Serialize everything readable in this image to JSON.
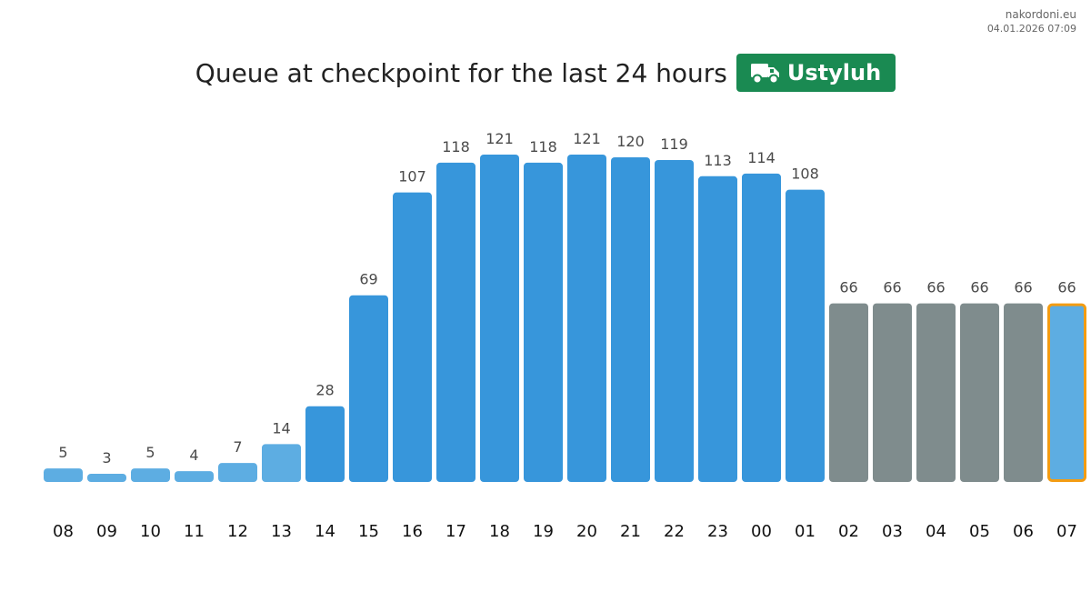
{
  "site": {
    "name": "nakordoni.eu",
    "timestamp": "04.01.2026 07:09"
  },
  "header": {
    "title": "Queue at checkpoint for the last 24 hours",
    "badge": {
      "label": "Ustyluh",
      "icon": "truck-icon",
      "color": "#1a8a52"
    }
  },
  "colors": {
    "bar_dark": "#3796db",
    "bar_light": "#5dade2",
    "bar_forecast": "#7f8c8d",
    "current_outline": "#f39c12"
  },
  "chart_data": {
    "type": "bar",
    "title": "Queue at checkpoint for the last 24 hours",
    "xlabel": "",
    "ylabel": "",
    "categories": [
      "08",
      "09",
      "10",
      "11",
      "12",
      "13",
      "14",
      "15",
      "16",
      "17",
      "18",
      "19",
      "20",
      "21",
      "22",
      "23",
      "00",
      "01",
      "02",
      "03",
      "04",
      "05",
      "06",
      "07"
    ],
    "values": [
      5,
      3,
      5,
      4,
      7,
      14,
      28,
      69,
      107,
      118,
      121,
      118,
      121,
      120,
      119,
      113,
      114,
      108,
      66,
      66,
      66,
      66,
      66,
      66
    ],
    "ylim": [
      0,
      121
    ],
    "grid": false,
    "legend": "none",
    "bar_types": [
      "light",
      "light",
      "light",
      "light",
      "light",
      "light",
      "dark",
      "dark",
      "dark",
      "dark",
      "dark",
      "dark",
      "dark",
      "dark",
      "dark",
      "dark",
      "dark",
      "dark",
      "forecast",
      "forecast",
      "forecast",
      "forecast",
      "forecast",
      "current"
    ]
  }
}
